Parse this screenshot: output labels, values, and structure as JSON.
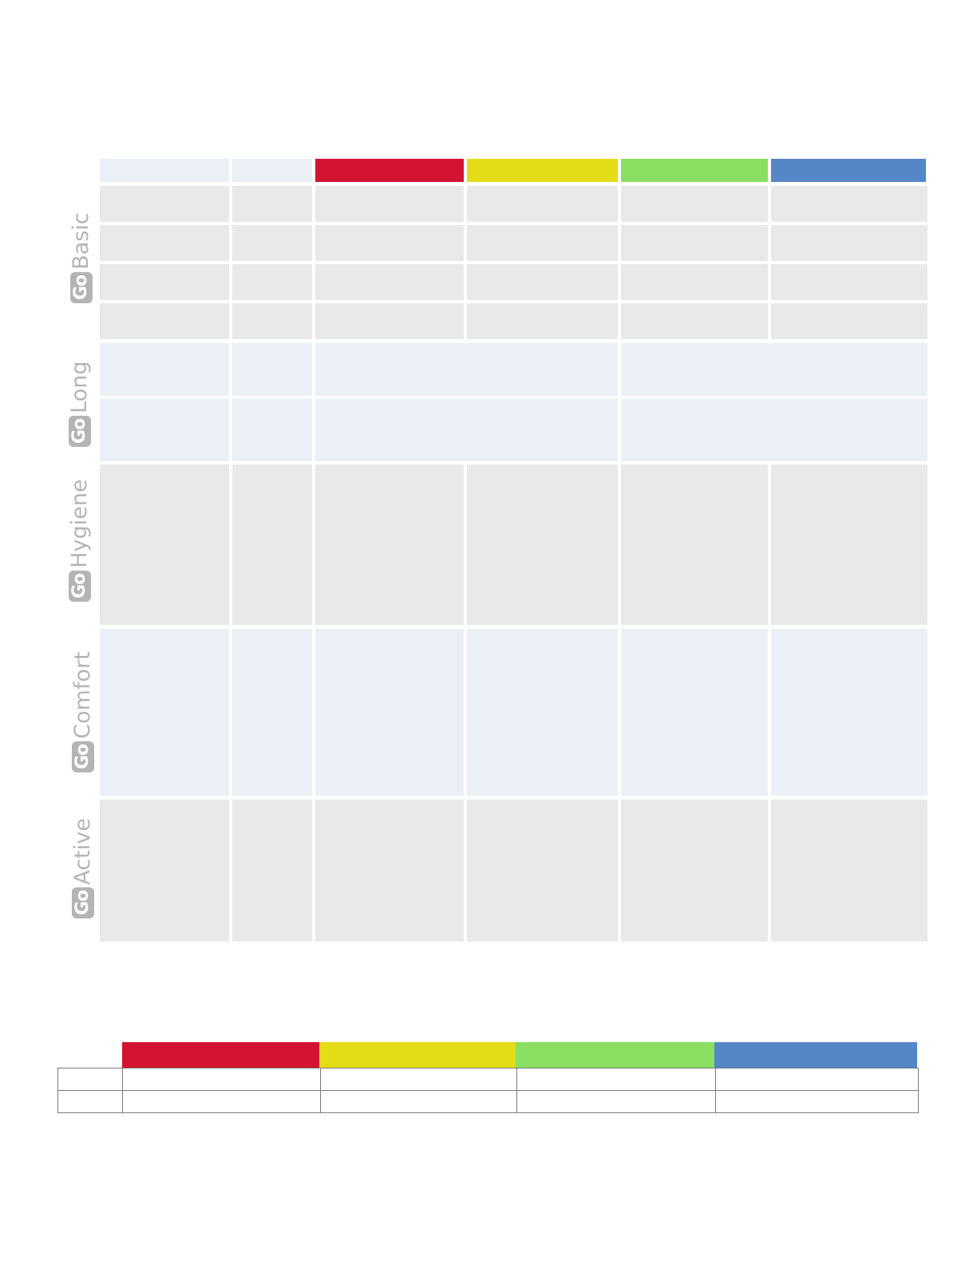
{
  "colors": {
    "red": "#d31431",
    "yellow": "#e5dc18",
    "green": "#8adf63",
    "blue": "#5586c8",
    "row_gray": "#e9e9e9",
    "row_blue": "#ebf0f6",
    "label_gray": "#b4b4b4"
  },
  "product_lines": [
    {
      "badge": "Go",
      "name": "Basic"
    },
    {
      "badge": "Go",
      "name": "Long"
    },
    {
      "badge": "Go",
      "name": "Hygiene"
    },
    {
      "badge": "Go",
      "name": "Comfort"
    },
    {
      "badge": "Go",
      "name": "Active"
    }
  ],
  "main_table": {
    "header_swatches": [
      "red",
      "yellow",
      "green",
      "blue"
    ]
  },
  "legend_table": {
    "header_swatches": [
      "red",
      "yellow",
      "green",
      "blue"
    ]
  }
}
